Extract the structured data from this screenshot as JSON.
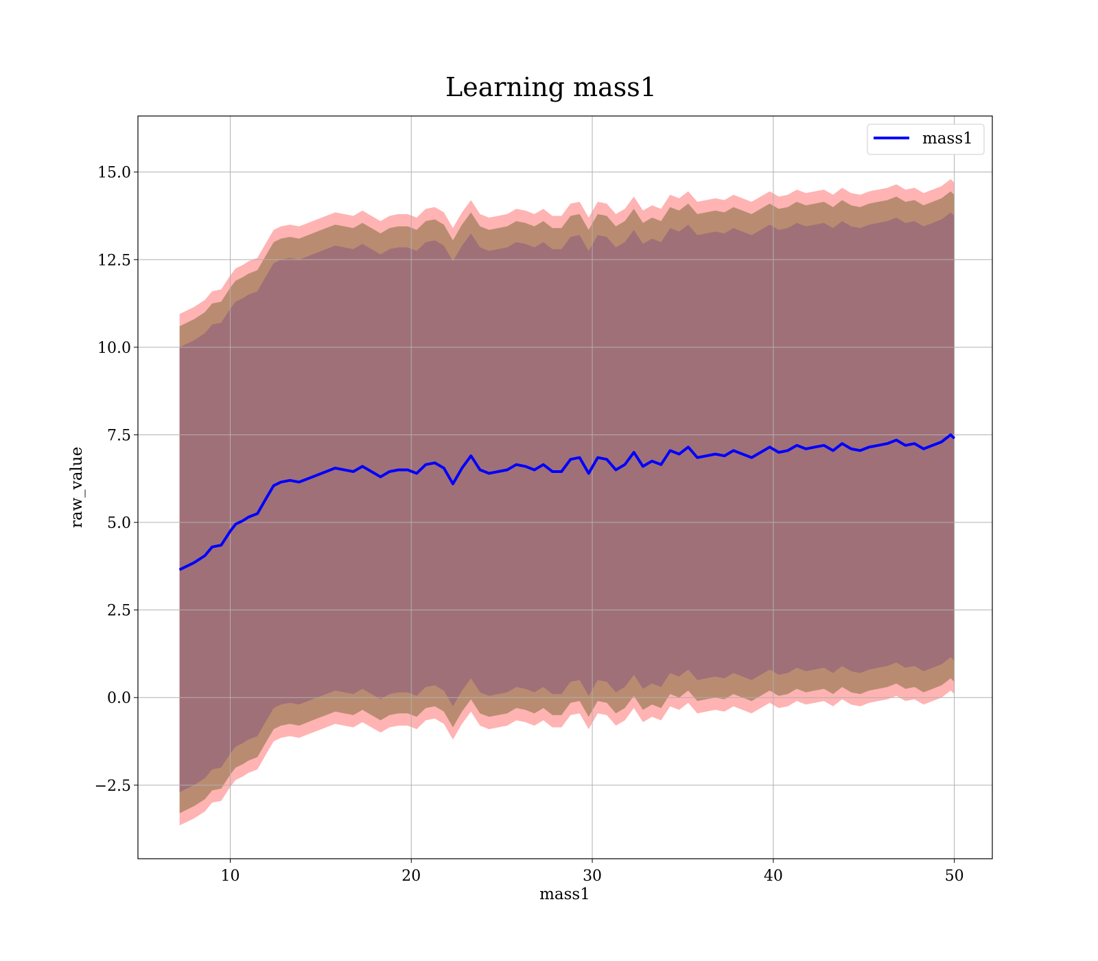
{
  "chart_data": {
    "type": "line",
    "title": "Learning mass1",
    "xlabel": "mass1",
    "ylabel": "raw_value",
    "xlim": [
      4.9,
      52.1
    ],
    "ylim": [
      -4.6,
      16.6
    ],
    "xticks": [
      10,
      20,
      30,
      40,
      50
    ],
    "xtick_labels": [
      "10",
      "20",
      "30",
      "40",
      "50"
    ],
    "yticks": [
      -2.5,
      0.0,
      2.5,
      5.0,
      7.5,
      10.0,
      12.5,
      15.0
    ],
    "ytick_labels": [
      "−2.5",
      "0.0",
      "2.5",
      "5.0",
      "7.5",
      "10.0",
      "12.5",
      "15.0"
    ],
    "grid": true,
    "legend": {
      "position": "top-right",
      "entries": [
        "mass1"
      ]
    },
    "colors": {
      "line": "#0000ff",
      "band_outer": "#ff9999",
      "band_middle": "#b58a6e",
      "band_inner": "#a07078",
      "grid": "#b0b0b0"
    },
    "x": [
      7.2,
      8.0,
      8.6,
      9.0,
      9.5,
      10.0,
      10.3,
      10.7,
      11.0,
      11.5,
      12.0,
      12.4,
      12.8,
      13.3,
      13.8,
      14.3,
      14.8,
      15.3,
      15.8,
      16.3,
      16.8,
      17.3,
      17.8,
      18.3,
      18.8,
      19.3,
      19.8,
      20.3,
      20.8,
      21.3,
      21.8,
      22.3,
      22.8,
      23.3,
      23.8,
      24.3,
      24.8,
      25.3,
      25.8,
      26.3,
      26.8,
      27.3,
      27.8,
      28.3,
      28.8,
      29.3,
      29.8,
      30.3,
      30.8,
      31.3,
      31.8,
      32.3,
      32.8,
      33.3,
      33.8,
      34.3,
      34.8,
      35.3,
      35.8,
      36.3,
      36.8,
      37.3,
      37.8,
      38.3,
      38.8,
      39.3,
      39.8,
      40.3,
      40.8,
      41.3,
      41.8,
      42.3,
      42.8,
      43.3,
      43.8,
      44.3,
      44.8,
      45.3,
      45.8,
      46.3,
      46.8,
      47.3,
      47.8,
      48.3,
      48.8,
      49.3,
      49.8,
      50.0
    ],
    "series": [
      {
        "name": "mass1",
        "values": [
          3.65,
          3.85,
          4.05,
          4.3,
          4.35,
          4.75,
          4.95,
          5.05,
          5.15,
          5.25,
          5.7,
          6.05,
          6.15,
          6.2,
          6.15,
          6.25,
          6.35,
          6.45,
          6.55,
          6.5,
          6.45,
          6.6,
          6.45,
          6.3,
          6.45,
          6.5,
          6.5,
          6.4,
          6.65,
          6.7,
          6.55,
          6.1,
          6.55,
          6.9,
          6.5,
          6.4,
          6.45,
          6.5,
          6.65,
          6.6,
          6.5,
          6.65,
          6.45,
          6.45,
          6.8,
          6.85,
          6.4,
          6.85,
          6.8,
          6.5,
          6.65,
          7.0,
          6.6,
          6.75,
          6.65,
          7.05,
          6.95,
          7.15,
          6.85,
          6.9,
          6.95,
          6.9,
          7.05,
          6.95,
          6.85,
          7.0,
          7.15,
          7.0,
          7.05,
          7.2,
          7.1,
          7.15,
          7.2,
          7.05,
          7.25,
          7.1,
          7.05,
          7.15,
          7.2,
          7.25,
          7.35,
          7.2,
          7.25,
          7.1,
          7.2,
          7.3,
          7.5,
          7.4
        ]
      }
    ],
    "bands": [
      {
        "offset": 7.3
      },
      {
        "offset": 6.95
      },
      {
        "offset": 6.35
      }
    ]
  }
}
